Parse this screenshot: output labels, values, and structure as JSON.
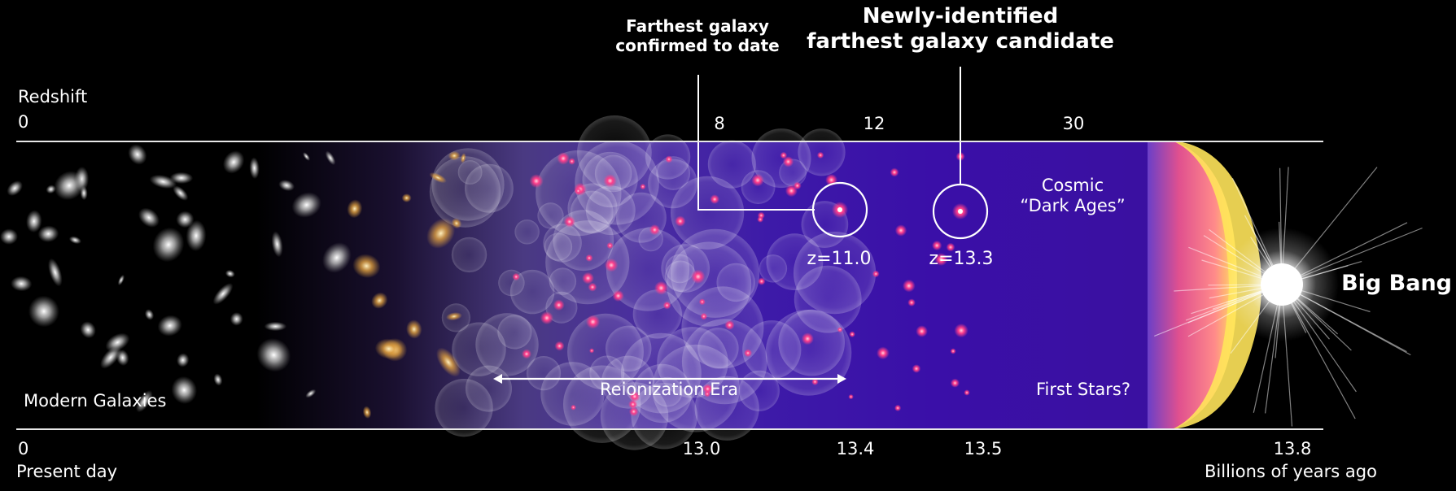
{
  "callouts": {
    "confirmed": {
      "line1": "Farthest galaxy",
      "line2": "confirmed to date"
    },
    "candidate": {
      "line1": "Newly-identified",
      "line2": "farthest galaxy candidate"
    }
  },
  "top_axis": {
    "title": "Redshift",
    "ticks": [
      "0",
      "8",
      "12",
      "30"
    ]
  },
  "bottom_axis": {
    "ticks": [
      "0",
      "13.0",
      "13.4",
      "13.5",
      "13.8"
    ],
    "left_caption": "Present day",
    "right_caption": "Billions of years ago"
  },
  "regions": {
    "modern_galaxies": "Modern Galaxies",
    "reionization_era": "Reionization Era",
    "dark_ages_line1": "Cosmic",
    "dark_ages_line2": "“Dark Ages”",
    "first_stars": "First Stars?",
    "big_bang": "Big Bang"
  },
  "galaxies": {
    "confirmed_label": "z=11.0",
    "candidate_label": "z=13.3"
  },
  "colors": {
    "background": "#000000",
    "dark_ages_purple": "#3d0fa6",
    "reionization_violet": "#5a3f9e",
    "cmb_pink": "#ff6f8f",
    "cmb_yellow": "#ffe45a",
    "axis_line": "#e8e8e8"
  }
}
